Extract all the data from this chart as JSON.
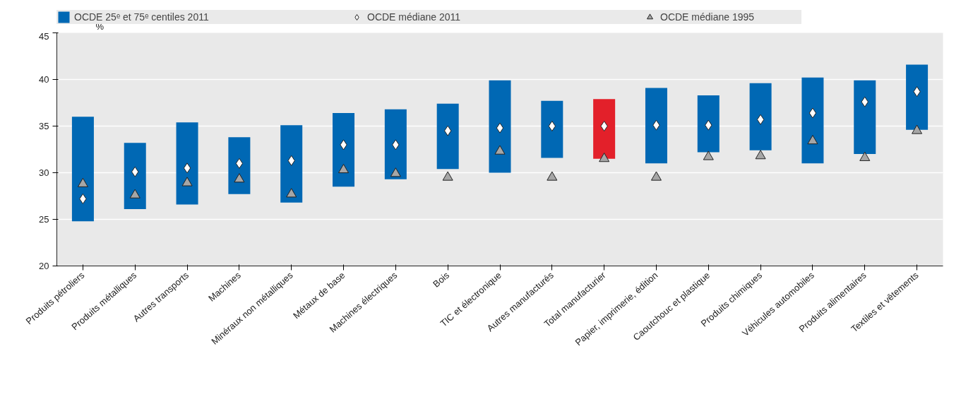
{
  "chart_data": {
    "type": "bar",
    "ylabel": "%",
    "categories": [
      "Produits pétroliers",
      "Produits métalliques",
      "Autres transports",
      "Machines",
      "Minéraux non métalliques",
      "Métaux de base",
      "Machines électriques",
      "Bois",
      "TIC et électronique",
      "Autres manufacturés",
      "Total manufacturier",
      "Papier, imprimerie, édition",
      "Caoutchouc et plastique",
      "Produits chimiques",
      "Véhicules automobiles",
      "Produits alimentaires",
      "Textiles et vêtements"
    ],
    "series": [
      {
        "name": "OCDE 25ᵉ et 75ᵉ centiles 2011",
        "color": "#0068b4",
        "colors": [
          "#0068b4",
          "#0068b4",
          "#0068b4",
          "#0068b4",
          "#0068b4",
          "#0068b4",
          "#0068b4",
          "#0068b4",
          "#0068b4",
          "#0068b4",
          "#e3202a",
          "#0068b4",
          "#0068b4",
          "#0068b4",
          "#0068b4",
          "#0068b4",
          "#0068b4"
        ],
        "base": [
          24.8,
          26.1,
          26.6,
          27.7,
          26.8,
          28.5,
          29.3,
          30.4,
          30.0,
          31.6,
          31.5,
          31.0,
          32.2,
          32.4,
          31.0,
          32.0,
          34.6
        ],
        "values": [
          11.2,
          7.1,
          8.8,
          6.1,
          8.3,
          7.9,
          7.5,
          7.0,
          9.9,
          6.1,
          6.4,
          8.1,
          6.1,
          7.2,
          9.2,
          7.9,
          7.0
        ]
      },
      {
        "name": "OCDE médiane 2011",
        "type": "scatter",
        "marker": "diamond",
        "color": "#ffffff",
        "values": [
          27.2,
          30.1,
          30.5,
          31.0,
          31.3,
          33.0,
          33.0,
          34.5,
          34.8,
          35.0,
          35.0,
          35.1,
          35.1,
          35.7,
          36.4,
          37.6,
          38.7
        ]
      },
      {
        "name": "OCDE médiane 1995",
        "type": "scatter",
        "marker": "triangle",
        "color": "#a6a6a6",
        "values": [
          28.8,
          27.6,
          28.9,
          29.3,
          27.7,
          30.3,
          29.9,
          29.5,
          32.3,
          29.5,
          31.5,
          29.5,
          31.7,
          31.8,
          33.4,
          31.6,
          34.5
        ]
      }
    ],
    "ylim": [
      20,
      45
    ],
    "yticks": [
      20,
      25,
      30,
      35,
      40,
      45
    ],
    "grid": "y",
    "legend": "top"
  }
}
